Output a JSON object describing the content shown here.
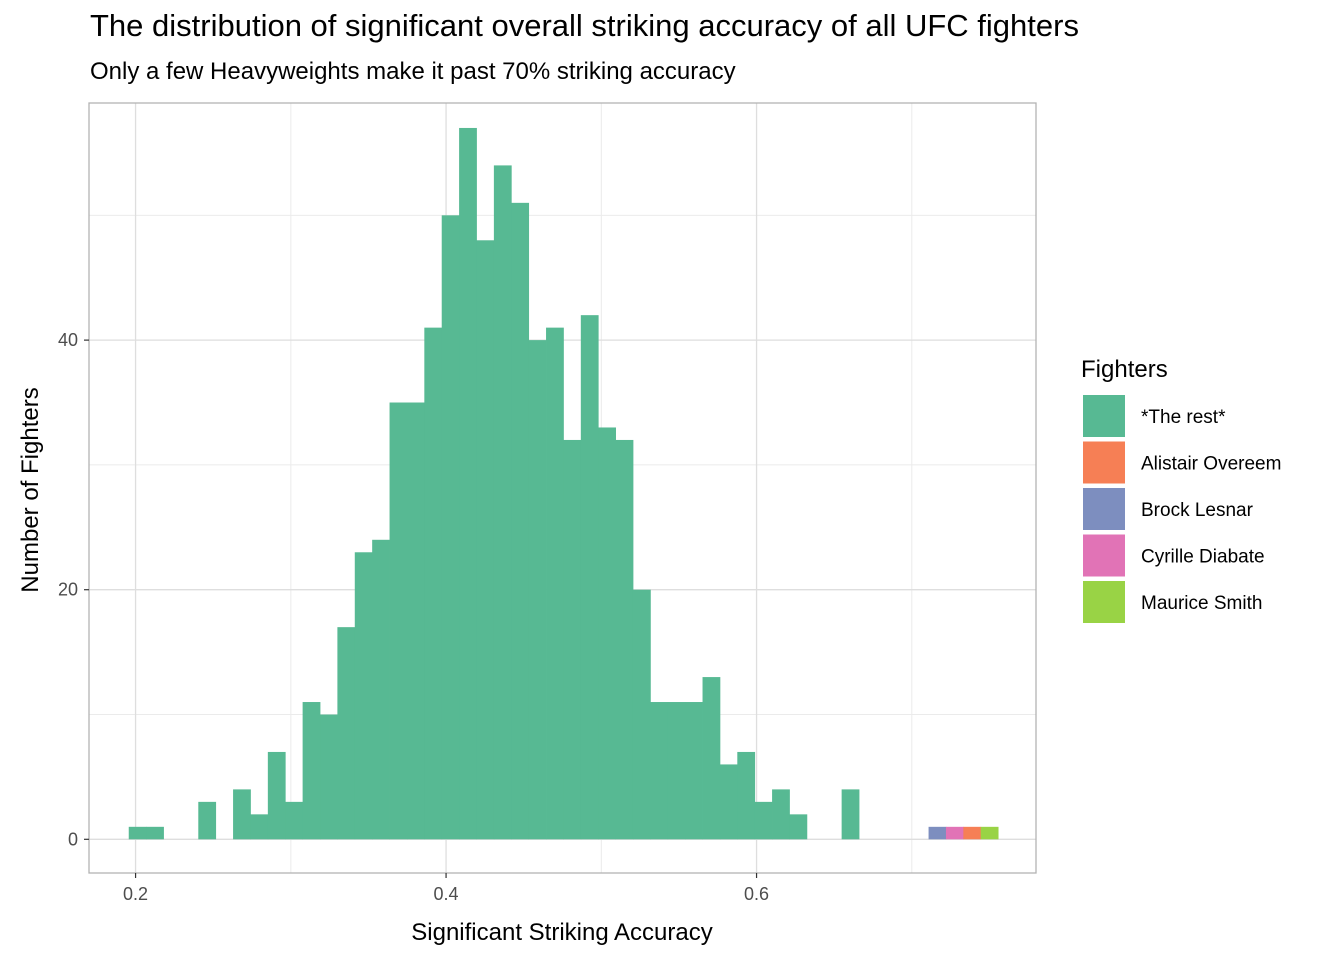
{
  "chart_data": {
    "type": "bar",
    "title": "The distribution of significant overall striking accuracy of all UFC fighters",
    "subtitle": "Only a few Heavyweights make it past 70% striking accuracy",
    "xlabel": "Significant Striking Accuracy",
    "ylabel": "Number of Fighters",
    "xlim": [
      0.17,
      0.78
    ],
    "ylim": [
      -2.7,
      59
    ],
    "x_ticks": [
      0.2,
      0.4,
      0.6
    ],
    "x_tick_labels": [
      "0.2",
      "0.4",
      "0.6"
    ],
    "y_ticks": [
      0,
      20,
      40
    ],
    "y_tick_labels": [
      "0",
      "20",
      "40"
    ],
    "grid": true,
    "bin_width": 0.0112,
    "legend": {
      "title": "Fighters",
      "position": "right",
      "entries": [
        {
          "label": "*The rest*",
          "color": "#57B993"
        },
        {
          "label": "Alistair Overeem",
          "color": "#F67F55"
        },
        {
          "label": "Brock Lesnar",
          "color": "#7D8EBF"
        },
        {
          "label": "Cyrille Diabate",
          "color": "#E173B6"
        },
        {
          "label": "Maurice Smith",
          "color": "#99D345"
        }
      ]
    },
    "series": [
      {
        "name": "*The rest*",
        "x": [
          0.2012,
          0.2124,
          0.246,
          0.2684,
          0.2796,
          0.2908,
          0.302,
          0.3132,
          0.3244,
          0.3356,
          0.3468,
          0.358,
          0.3692,
          0.3804,
          0.3916,
          0.4028,
          0.414,
          0.4252,
          0.4364,
          0.4476,
          0.4588,
          0.47,
          0.4812,
          0.4924,
          0.5036,
          0.5148,
          0.526,
          0.5372,
          0.5484,
          0.5596,
          0.5708,
          0.582,
          0.5932,
          0.6044,
          0.6156,
          0.6268,
          0.6604
        ],
        "values": [
          1,
          1,
          3,
          4,
          2,
          7,
          3,
          11,
          10,
          17,
          23,
          24,
          35,
          35,
          41,
          50,
          57,
          48,
          54,
          51,
          40,
          41,
          32,
          42,
          33,
          32,
          20,
          11,
          11,
          11,
          13,
          6,
          7,
          3,
          4,
          2,
          4
        ]
      },
      {
        "name": "Brock Lesnar",
        "x": [
          0.7164
        ],
        "values": [
          1
        ]
      },
      {
        "name": "Cyrille Diabate",
        "x": [
          0.7276
        ],
        "values": [
          1
        ]
      },
      {
        "name": "Alistair Overeem",
        "x": [
          0.7388
        ],
        "values": [
          1
        ]
      },
      {
        "name": "Maurice Smith",
        "x": [
          0.75
        ],
        "values": [
          1
        ]
      }
    ]
  }
}
